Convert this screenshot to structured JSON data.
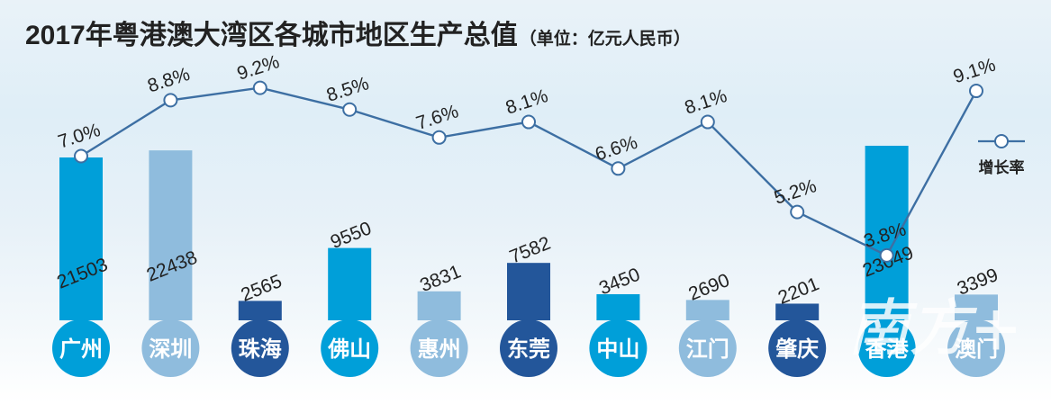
{
  "title": "2017年粤港澳大湾区各城市地区生产总值",
  "subtitle": "（单位：亿元人民币）",
  "legend": {
    "label": "增长率",
    "position": "right"
  },
  "watermark": "南方+",
  "colors": {
    "blue": "#009fd9",
    "light_blue": "#8fbcdd",
    "navy": "#23569a",
    "line": "#3d6fa3"
  },
  "chart_data": {
    "type": "bar+line",
    "title": "2017年粤港澳大湾区各城市地区生产总值",
    "subtitle": "（单位：亿元人民币）",
    "categories": [
      "广州",
      "深圳",
      "珠海",
      "佛山",
      "惠州",
      "东莞",
      "中山",
      "江门",
      "肇庆",
      "香港",
      "澳门"
    ],
    "bar_colors": [
      "blue",
      "light_blue",
      "navy",
      "blue",
      "light_blue",
      "navy",
      "blue",
      "light_blue",
      "navy",
      "blue",
      "light_blue"
    ],
    "series": [
      {
        "type": "bar",
        "values": [
          21503,
          22438,
          2565,
          9550,
          3831,
          7582,
          3450,
          2690,
          2201,
          23049,
          3399
        ],
        "labels": [
          "21503",
          "22438",
          "2565",
          "9550",
          "3831",
          "7582",
          "3450",
          "2690",
          "2201",
          "23049",
          "3399"
        ]
      },
      {
        "type": "line",
        "name": "增长率",
        "values": [
          7.0,
          8.8,
          9.2,
          8.5,
          7.6,
          8.1,
          6.6,
          8.1,
          5.2,
          3.8,
          9.1
        ],
        "labels": [
          "7.0%",
          "8.8%",
          "9.2%",
          "8.5%",
          "7.6%",
          "8.1%",
          "6.6%",
          "8.1%",
          "5.2%",
          "3.8%",
          "9.1%"
        ]
      }
    ]
  }
}
